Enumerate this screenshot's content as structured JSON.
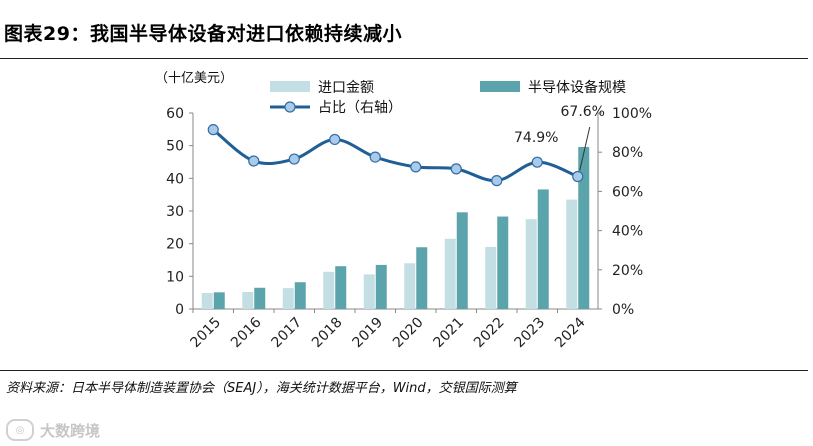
{
  "figure": {
    "title": "图表29：我国半导体设备对进口依赖持续减小",
    "source": "资料来源：日本半导体制造装置协会（SEAJ），海关统计数据平台，Wind，交银国际测算",
    "watermark": "大数跨境"
  },
  "chart_data": {
    "type": "bar",
    "title": "图表29：我国半导体设备对进口依赖持续减小",
    "unit_label": "（十亿美元）",
    "categories": [
      "2015",
      "2016",
      "2017",
      "2018",
      "2019",
      "2020",
      "2021",
      "2022",
      "2023",
      "2024"
    ],
    "series": [
      {
        "name": "进口金额",
        "type": "bar",
        "color": "#c4dfe3",
        "values": [
          4.9,
          5.2,
          6.4,
          11.4,
          10.6,
          14.0,
          21.5,
          19.0,
          27.5,
          33.5
        ]
      },
      {
        "name": "半导体设备规模",
        "type": "bar",
        "color": "#5ba4ab",
        "values": [
          5.1,
          6.5,
          8.2,
          13.1,
          13.5,
          18.9,
          29.6,
          28.3,
          36.6,
          49.6
        ]
      },
      {
        "name": "占比（右轴）",
        "type": "line",
        "axis": "right",
        "color": "#1f5f96",
        "values": [
          91.5,
          75.5,
          76.5,
          86.5,
          77.5,
          72.5,
          71.5,
          65.5,
          74.9,
          67.6
        ]
      }
    ],
    "annotations": [
      {
        "category": "2023",
        "series": "占比（右轴）",
        "label": "74.9%"
      },
      {
        "category": "2024",
        "series": "占比（右轴）",
        "label": "67.6%"
      }
    ],
    "y_left": {
      "min": 0,
      "max": 60,
      "ticks": [
        "0",
        "10",
        "20",
        "30",
        "40",
        "50",
        "60"
      ]
    },
    "y_right": {
      "min": 0,
      "max": 100,
      "ticks": [
        "0%",
        "20%",
        "40%",
        "60%",
        "80%",
        "100%"
      ]
    },
    "legend_position": "top",
    "grid": false
  }
}
